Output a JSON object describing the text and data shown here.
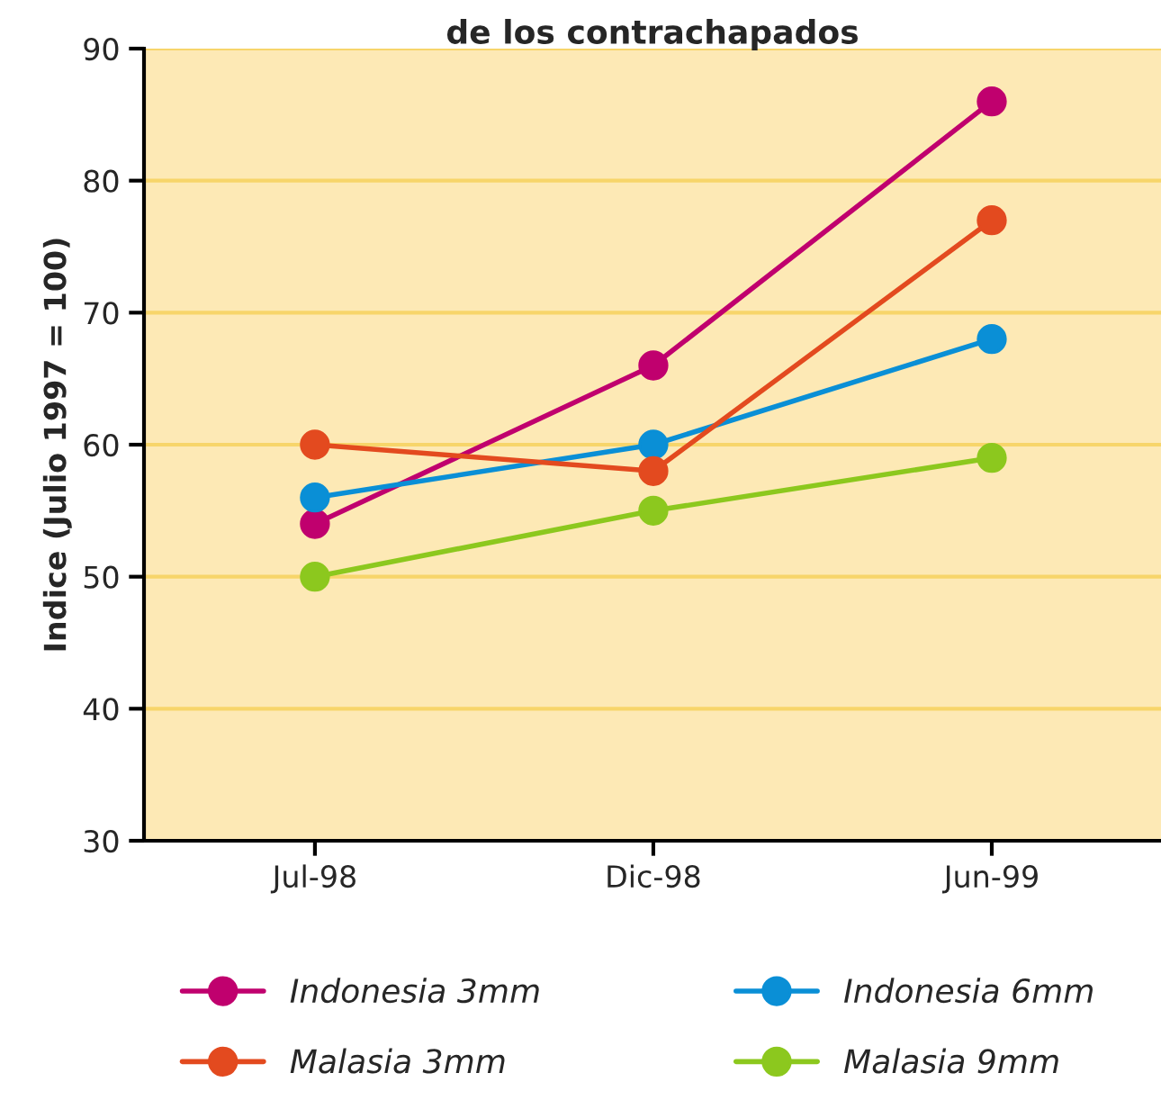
{
  "chart_data": {
    "type": "line",
    "title": "de los contrachapados",
    "ylabel": "Indice (Julio 1997 = 100)",
    "categories": [
      "Jul-98",
      "Dic-98",
      "Jun-99"
    ],
    "series": [
      {
        "name": "Indonesia 3mm",
        "color": "#c0006e",
        "values": [
          54,
          66,
          86
        ]
      },
      {
        "name": "Indonesia 6mm",
        "color": "#0a8fd6",
        "values": [
          56,
          60,
          68
        ]
      },
      {
        "name": "Malasia 3mm",
        "color": "#e34a1f",
        "values": [
          60,
          58,
          77
        ]
      },
      {
        "name": "Malasia 9mm",
        "color": "#8cc81e",
        "values": [
          50,
          55,
          59
        ]
      }
    ],
    "ylim": [
      30,
      90
    ],
    "yticks": [
      30,
      40,
      50,
      60,
      70,
      80,
      90
    ],
    "grid": "y",
    "legend": "bottom",
    "marker": "circle",
    "line_style": "solid"
  }
}
